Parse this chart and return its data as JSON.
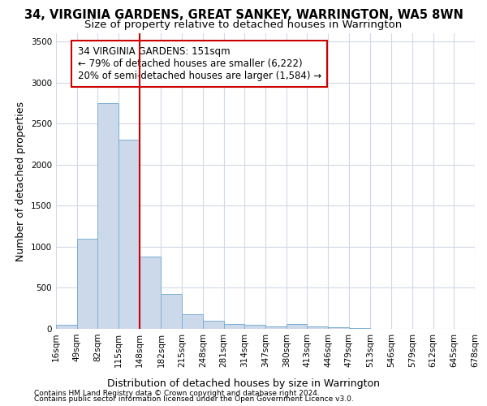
{
  "title": "34, VIRGINIA GARDENS, GREAT SANKEY, WARRINGTON, WA5 8WN",
  "subtitle": "Size of property relative to detached houses in Warrington",
  "xlabel": "Distribution of detached houses by size in Warrington",
  "ylabel": "Number of detached properties",
  "footnote1": "Contains HM Land Registry data © Crown copyright and database right 2024.",
  "footnote2": "Contains public sector information licensed under the Open Government Licence v3.0.",
  "annotation_line1": "34 VIRGINIA GARDENS: 151sqm",
  "annotation_line2": "← 79% of detached houses are smaller (6,222)",
  "annotation_line3": "20% of semi-detached houses are larger (1,584) →",
  "bar_color": "#ccd9ea",
  "bar_edge_color": "#7bafd4",
  "vline_color": "#cc0000",
  "vline_x": 148,
  "bin_edges": [
    16,
    49,
    82,
    115,
    148,
    182,
    215,
    248,
    281,
    314,
    347,
    380,
    413,
    446,
    479,
    513,
    546,
    579,
    612,
    645,
    678
  ],
  "bar_heights": [
    50,
    1100,
    2750,
    2300,
    880,
    430,
    180,
    100,
    55,
    45,
    30,
    55,
    25,
    15,
    5,
    3,
    2,
    1,
    0,
    0
  ],
  "ylim": [
    0,
    3600
  ],
  "yticks": [
    0,
    500,
    1000,
    1500,
    2000,
    2500,
    3000,
    3500
  ],
  "bg_color": "#ffffff",
  "plot_bg_color": "#ffffff",
  "grid_color": "#d0d8e8",
  "title_fontsize": 10.5,
  "subtitle_fontsize": 9.5,
  "axis_fontsize": 9,
  "tick_fontsize": 7.5,
  "footnote_fontsize": 6.5,
  "annotation_fontsize": 8.5
}
